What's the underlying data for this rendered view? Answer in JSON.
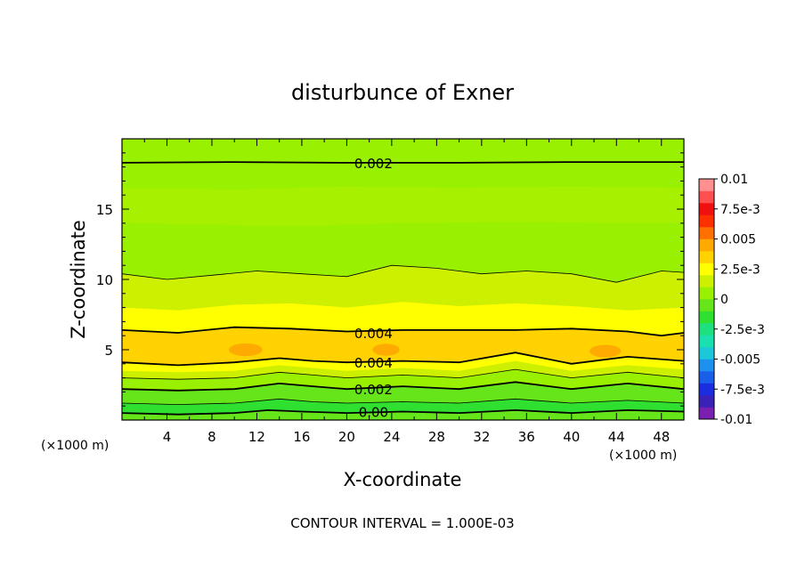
{
  "chart_data": {
    "type": "heatmap",
    "title": "disturbunce of Exner",
    "xlabel": "X-coordinate",
    "ylabel": "Z-coordinate",
    "x_unit": "(×1000 m)",
    "y_unit": "(×1000 m)",
    "xlim": [
      0,
      50
    ],
    "ylim": [
      0,
      20
    ],
    "x_ticks": [
      "4",
      "8",
      "12",
      "16",
      "20",
      "24",
      "28",
      "32",
      "36",
      "40",
      "44",
      "48"
    ],
    "y_ticks": [
      "5",
      "10",
      "15"
    ],
    "footer": "CONTOUR INTERVAL = 1.000E-03",
    "colorbar": {
      "labels": [
        "0.01",
        "7.5e-3",
        "0.005",
        "2.5e-3",
        "0",
        "-2.5e-3",
        "-0.005",
        "-7.5e-3",
        "-0.01"
      ],
      "range": [
        -0.01,
        0.01
      ],
      "colors": [
        "#7a1fb0",
        "#3a22b8",
        "#1a2ee0",
        "#1a5fe8",
        "#1e90f0",
        "#1cc8d8",
        "#1ae0b0",
        "#1ee080",
        "#30e030",
        "#66e61a",
        "#99f000",
        "#ccf000",
        "#ffff00",
        "#ffd200",
        "#ffaa00",
        "#ff7000",
        "#ff3000",
        "#f01010",
        "#ff5050",
        "#ff9090"
      ]
    },
    "contour_labels": [
      {
        "text": "0.002",
        "x": 20,
        "z": 18.3
      },
      {
        "text": "0.004",
        "x": 20,
        "z": 6.2
      },
      {
        "text": "0.004",
        "x": 20,
        "z": 4.1
      },
      {
        "text": "0.002",
        "x": 20,
        "z": 2.2
      },
      {
        "text": "0.00",
        "x": 20,
        "z": 0.6
      }
    ],
    "contours": [
      {
        "level": 0.0,
        "bold": true,
        "points": [
          [
            0,
            0.5
          ],
          [
            5,
            0.4
          ],
          [
            10,
            0.5
          ],
          [
            13,
            0.7
          ],
          [
            16,
            0.6
          ],
          [
            20,
            0.5
          ],
          [
            25,
            0.6
          ],
          [
            30,
            0.5
          ],
          [
            35,
            0.7
          ],
          [
            40,
            0.5
          ],
          [
            45,
            0.7
          ],
          [
            50,
            0.6
          ]
        ]
      },
      {
        "level": 0.001,
        "bold": false,
        "points": [
          [
            0,
            1.2
          ],
          [
            5,
            1.1
          ],
          [
            10,
            1.2
          ],
          [
            14,
            1.5
          ],
          [
            17,
            1.3
          ],
          [
            20,
            1.2
          ],
          [
            25,
            1.3
          ],
          [
            30,
            1.2
          ],
          [
            35,
            1.5
          ],
          [
            40,
            1.2
          ],
          [
            45,
            1.4
          ],
          [
            50,
            1.2
          ]
        ]
      },
      {
        "level": 0.002,
        "bold": true,
        "points": [
          [
            0,
            2.2
          ],
          [
            5,
            2.1
          ],
          [
            10,
            2.2
          ],
          [
            14,
            2.6
          ],
          [
            17,
            2.4
          ],
          [
            20,
            2.2
          ],
          [
            25,
            2.4
          ],
          [
            30,
            2.2
          ],
          [
            35,
            2.7
          ],
          [
            40,
            2.2
          ],
          [
            45,
            2.6
          ],
          [
            50,
            2.2
          ]
        ]
      },
      {
        "level": 0.003,
        "bold": false,
        "points": [
          [
            0,
            3.0
          ],
          [
            5,
            2.9
          ],
          [
            10,
            3.0
          ],
          [
            14,
            3.4
          ],
          [
            17,
            3.2
          ],
          [
            20,
            3.0
          ],
          [
            25,
            3.2
          ],
          [
            30,
            3.0
          ],
          [
            35,
            3.6
          ],
          [
            40,
            3.0
          ],
          [
            45,
            3.4
          ],
          [
            50,
            3.0
          ]
        ]
      },
      {
        "level": 0.004,
        "bold": true,
        "points": [
          [
            0,
            4.1
          ],
          [
            5,
            3.9
          ],
          [
            10,
            4.1
          ],
          [
            14,
            4.4
          ],
          [
            17,
            4.2
          ],
          [
            20,
            4.1
          ],
          [
            25,
            4.2
          ],
          [
            30,
            4.1
          ],
          [
            35,
            4.8
          ],
          [
            40,
            4.0
          ],
          [
            45,
            4.5
          ],
          [
            50,
            4.2
          ]
        ]
      },
      {
        "level": 0.004,
        "bold": true,
        "points": [
          [
            0,
            6.4
          ],
          [
            5,
            6.2
          ],
          [
            10,
            6.6
          ],
          [
            15,
            6.5
          ],
          [
            20,
            6.3
          ],
          [
            25,
            6.4
          ],
          [
            30,
            6.4
          ],
          [
            35,
            6.4
          ],
          [
            40,
            6.5
          ],
          [
            45,
            6.3
          ],
          [
            48,
            6.0
          ],
          [
            50,
            6.2
          ]
        ]
      },
      {
        "level": 0.003,
        "bold": false,
        "points": [
          [
            0,
            10.4
          ],
          [
            4,
            10.0
          ],
          [
            8,
            10.3
          ],
          [
            12,
            10.6
          ],
          [
            16,
            10.4
          ],
          [
            20,
            10.2
          ],
          [
            24,
            11.0
          ],
          [
            28,
            10.8
          ],
          [
            32,
            10.4
          ],
          [
            36,
            10.6
          ],
          [
            40,
            10.4
          ],
          [
            44,
            9.8
          ],
          [
            48,
            10.6
          ],
          [
            50,
            10.5
          ]
        ]
      },
      {
        "level": 0.002,
        "bold": true,
        "points": [
          [
            0,
            18.3
          ],
          [
            10,
            18.35
          ],
          [
            20,
            18.3
          ],
          [
            30,
            18.3
          ],
          [
            40,
            18.35
          ],
          [
            50,
            18.35
          ]
        ]
      }
    ],
    "bands": [
      {
        "color": "#66e61a",
        "points": [
          [
            0,
            0
          ],
          [
            50,
            0
          ]
        ]
      },
      {
        "color": "#30e030",
        "points": [
          [
            0,
            0.5
          ],
          [
            5,
            0.4
          ],
          [
            10,
            0.5
          ],
          [
            13,
            0.7
          ],
          [
            16,
            0.6
          ],
          [
            20,
            0.5
          ],
          [
            25,
            0.6
          ],
          [
            30,
            0.5
          ],
          [
            35,
            0.7
          ],
          [
            40,
            0.5
          ],
          [
            45,
            0.7
          ],
          [
            50,
            0.6
          ]
        ]
      },
      {
        "color": "#66e61a",
        "points": [
          [
            0,
            1.2
          ],
          [
            5,
            1.1
          ],
          [
            10,
            1.2
          ],
          [
            14,
            1.5
          ],
          [
            17,
            1.3
          ],
          [
            20,
            1.2
          ],
          [
            25,
            1.3
          ],
          [
            30,
            1.2
          ],
          [
            35,
            1.5
          ],
          [
            40,
            1.2
          ],
          [
            45,
            1.4
          ],
          [
            50,
            1.2
          ]
        ]
      },
      {
        "color": "#99f000",
        "points": [
          [
            0,
            2.2
          ],
          [
            5,
            2.1
          ],
          [
            10,
            2.2
          ],
          [
            14,
            2.6
          ],
          [
            17,
            2.4
          ],
          [
            20,
            2.2
          ],
          [
            25,
            2.4
          ],
          [
            30,
            2.2
          ],
          [
            35,
            2.7
          ],
          [
            40,
            2.2
          ],
          [
            45,
            2.6
          ],
          [
            50,
            2.2
          ]
        ]
      },
      {
        "color": "#ccf000",
        "points": [
          [
            0,
            3.0
          ],
          [
            5,
            2.9
          ],
          [
            10,
            3.0
          ],
          [
            14,
            3.4
          ],
          [
            17,
            3.2
          ],
          [
            20,
            3.0
          ],
          [
            25,
            3.2
          ],
          [
            30,
            3.0
          ],
          [
            35,
            3.6
          ],
          [
            40,
            3.0
          ],
          [
            45,
            3.4
          ],
          [
            50,
            3.0
          ]
        ]
      },
      {
        "color": "#ffff00",
        "points": [
          [
            0,
            3.5
          ],
          [
            5,
            3.4
          ],
          [
            10,
            3.5
          ],
          [
            14,
            3.9
          ],
          [
            17,
            3.7
          ],
          [
            20,
            3.5
          ],
          [
            25,
            3.7
          ],
          [
            30,
            3.5
          ],
          [
            35,
            4.2
          ],
          [
            40,
            3.5
          ],
          [
            45,
            3.9
          ],
          [
            50,
            3.6
          ]
        ]
      },
      {
        "color": "#ffd200",
        "points": [
          [
            0,
            4.1
          ],
          [
            5,
            3.9
          ],
          [
            10,
            4.1
          ],
          [
            14,
            4.4
          ],
          [
            17,
            4.2
          ],
          [
            20,
            4.1
          ],
          [
            25,
            4.2
          ],
          [
            30,
            4.1
          ],
          [
            35,
            4.8
          ],
          [
            40,
            4.0
          ],
          [
            45,
            4.5
          ],
          [
            50,
            4.2
          ]
        ]
      },
      {
        "color": "#ffff00",
        "points": [
          [
            0,
            6.4
          ],
          [
            5,
            6.2
          ],
          [
            10,
            6.6
          ],
          [
            15,
            6.5
          ],
          [
            20,
            6.3
          ],
          [
            25,
            6.4
          ],
          [
            30,
            6.4
          ],
          [
            35,
            6.4
          ],
          [
            40,
            6.5
          ],
          [
            45,
            6.3
          ],
          [
            48,
            6.0
          ],
          [
            50,
            6.2
          ]
        ]
      },
      {
        "color": "#ccf000",
        "points": [
          [
            0,
            8.0
          ],
          [
            5,
            7.8
          ],
          [
            10,
            8.2
          ],
          [
            15,
            8.3
          ],
          [
            20,
            8.0
          ],
          [
            25,
            8.4
          ],
          [
            30,
            8.1
          ],
          [
            35,
            8.3
          ],
          [
            40,
            8.1
          ],
          [
            45,
            7.8
          ],
          [
            50,
            8.0
          ]
        ]
      },
      {
        "color": "#99f000",
        "points": [
          [
            0,
            10.4
          ],
          [
            4,
            10.0
          ],
          [
            8,
            10.3
          ],
          [
            12,
            10.6
          ],
          [
            16,
            10.4
          ],
          [
            20,
            10.2
          ],
          [
            24,
            11.0
          ],
          [
            28,
            10.8
          ],
          [
            32,
            10.4
          ],
          [
            36,
            10.6
          ],
          [
            40,
            10.4
          ],
          [
            44,
            9.8
          ],
          [
            48,
            10.6
          ],
          [
            50,
            10.5
          ]
        ]
      },
      {
        "color": "#a6f000",
        "points": [
          [
            0,
            14.0
          ],
          [
            8,
            13.9
          ],
          [
            15,
            13.8
          ],
          [
            25,
            14.0
          ],
          [
            35,
            14.1
          ],
          [
            45,
            14.0
          ],
          [
            50,
            14.0
          ]
        ]
      },
      {
        "color": "#99f000",
        "points": [
          [
            0,
            16.5
          ],
          [
            10,
            16.4
          ],
          [
            20,
            16.6
          ],
          [
            30,
            16.5
          ],
          [
            40,
            16.6
          ],
          [
            50,
            16.5
          ]
        ]
      }
    ],
    "maxima": [
      {
        "x": 11,
        "z": 5.0,
        "rx": 1.5,
        "rz": 0.45,
        "color": "#ffaa00"
      },
      {
        "x": 23.5,
        "z": 5.0,
        "rx": 1.2,
        "rz": 0.42,
        "color": "#ffaa00"
      },
      {
        "x": 43,
        "z": 4.9,
        "rx": 1.4,
        "rz": 0.45,
        "color": "#ffaa00"
      }
    ]
  }
}
